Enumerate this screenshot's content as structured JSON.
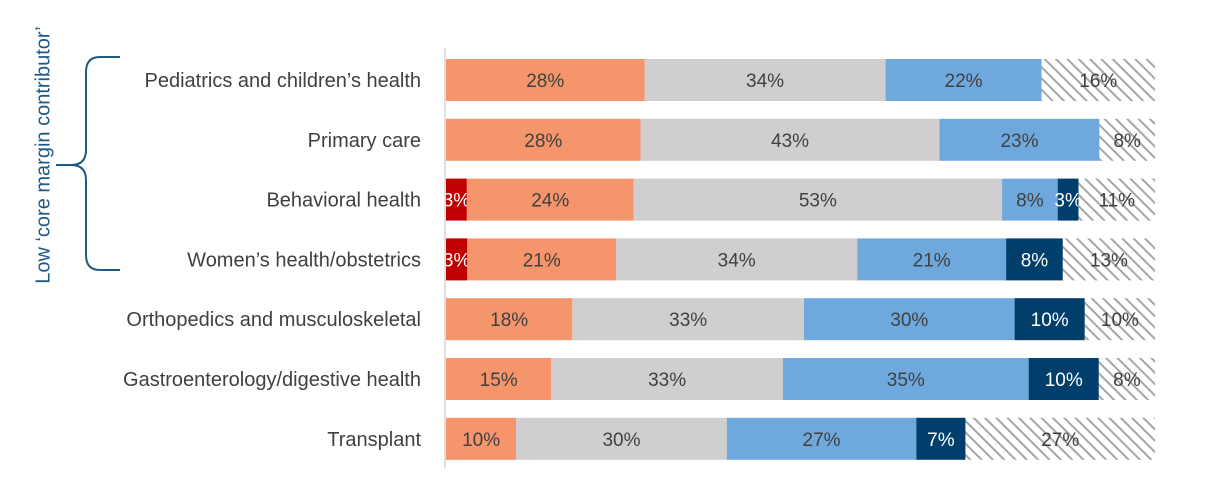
{
  "chart_data": {
    "type": "stacked-bar-horizontal",
    "stacking": "percent",
    "categories": [
      "Pediatrics and children’s health",
      "Primary care",
      "Behavioral health",
      "Women’s health/obstetrics",
      "Orthopedics and musculoskeletal",
      "Gastroenterology/digestive health",
      "Transplant"
    ],
    "series": [
      {
        "color": "#c00000",
        "values": [
          0,
          0,
          3,
          3,
          0,
          0,
          0
        ],
        "labels": [
          "",
          "",
          "3%",
          "3%",
          "",
          "",
          ""
        ]
      },
      {
        "color": "#f4956b",
        "values": [
          28,
          28,
          24,
          21,
          18,
          15,
          10
        ],
        "labels": [
          "28%",
          "28%",
          "24%",
          "21%",
          "18%",
          "15%",
          "10%"
        ]
      },
      {
        "color": "#d0cecf",
        "values": [
          34,
          43,
          53,
          34,
          33,
          33,
          30
        ],
        "labels": [
          "34%",
          "43%",
          "53%",
          "34%",
          "33%",
          "33%",
          "30%"
        ]
      },
      {
        "color": "#6fa8dc",
        "values": [
          22,
          23,
          8,
          21,
          30,
          35,
          27
        ],
        "labels": [
          "22%",
          "23%",
          "8%",
          "21%",
          "30%",
          "35%",
          "27%"
        ]
      },
      {
        "color": "#003f6b",
        "values": [
          0,
          0,
          3,
          8,
          10,
          10,
          7
        ],
        "labels": [
          "",
          "",
          "3%",
          "8%",
          "10%",
          "10%",
          "7%"
        ]
      },
      {
        "color": "#9b9b9b",
        "pattern": "hatched",
        "values": [
          16,
          8,
          11,
          13,
          10,
          8,
          27
        ],
        "labels": [
          "16%",
          "8%",
          "11%",
          "13%",
          "10%",
          "8%",
          "27%"
        ]
      }
    ],
    "legend": "none",
    "grid": false
  },
  "group_bracket": {
    "label": "Low ‘core margin contributor’",
    "color": "#1f5a85",
    "covers_categories": 4
  }
}
